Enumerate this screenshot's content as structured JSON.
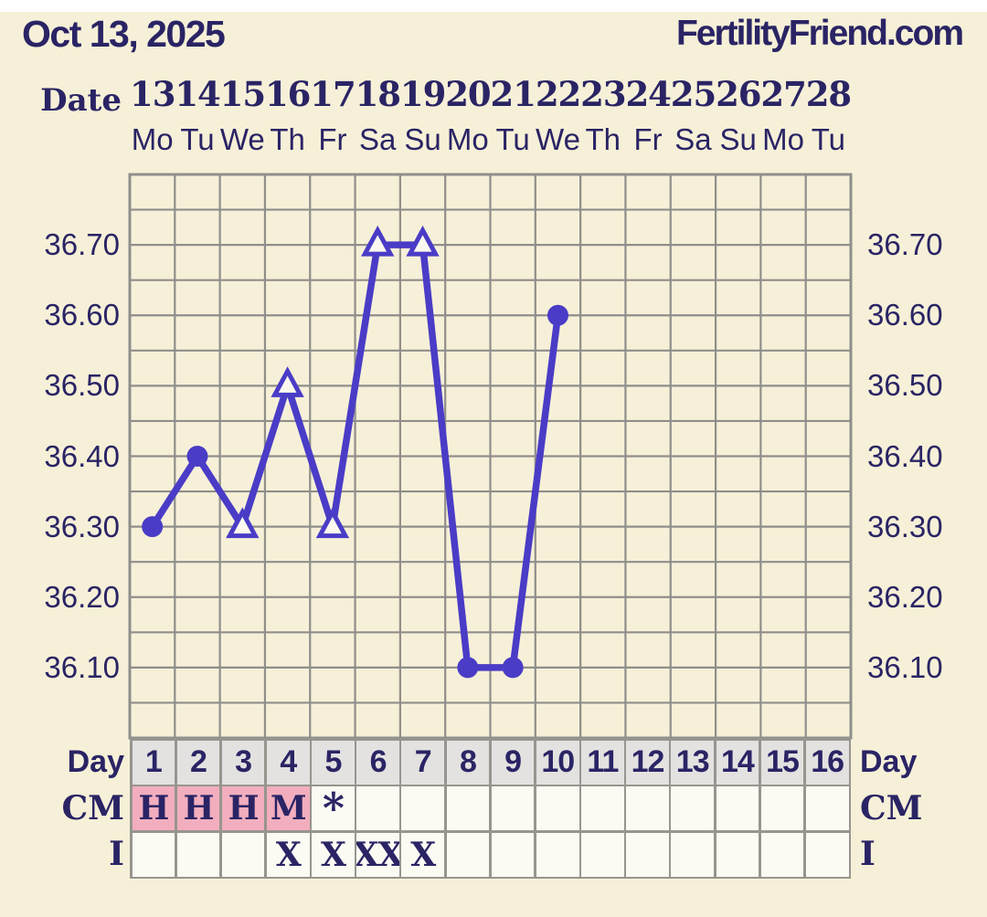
{
  "header": {
    "date_title": "Oct 13, 2025",
    "brand": "FertilityFriend.com"
  },
  "calendar": {
    "axis_label": "Date",
    "dates": [
      "13",
      "14",
      "15",
      "16",
      "17",
      "18",
      "19",
      "20",
      "21",
      "22",
      "23",
      "24",
      "25",
      "26",
      "27",
      "28"
    ],
    "weekdays": [
      "Mo",
      "Tu",
      "We",
      "Th",
      "Fr",
      "Sa",
      "Su",
      "Mo",
      "Tu",
      "We",
      "Th",
      "Fr",
      "Sa",
      "Su",
      "Mo",
      "Tu"
    ]
  },
  "chart_data": {
    "type": "line",
    "x_days": [
      1,
      2,
      3,
      4,
      5,
      6,
      7,
      8,
      9,
      10,
      11,
      12,
      13,
      14,
      15,
      16
    ],
    "points": [
      {
        "day": 1,
        "temp": 36.3,
        "marker": "circle"
      },
      {
        "day": 2,
        "temp": 36.4,
        "marker": "circle"
      },
      {
        "day": 3,
        "temp": 36.3,
        "marker": "triangle"
      },
      {
        "day": 4,
        "temp": 36.5,
        "marker": "triangle"
      },
      {
        "day": 5,
        "temp": 36.3,
        "marker": "triangle"
      },
      {
        "day": 6,
        "temp": 36.7,
        "marker": "triangle"
      },
      {
        "day": 7,
        "temp": 36.7,
        "marker": "triangle"
      },
      {
        "day": 8,
        "temp": 36.1,
        "marker": "circle"
      },
      {
        "day": 9,
        "temp": 36.1,
        "marker": "circle"
      },
      {
        "day": 10,
        "temp": 36.6,
        "marker": "circle"
      }
    ],
    "y_tick_labels": [
      "36.70",
      "36.60",
      "36.50",
      "36.40",
      "36.30",
      "36.20",
      "36.10"
    ],
    "ylim": [
      36.0,
      36.8
    ],
    "grid_step": 0.05,
    "columns": 16,
    "grid_on": true,
    "tick_labels_both_sides": true
  },
  "table": {
    "day_label": "Day",
    "cm_label": "CM",
    "i_label": "I",
    "day_numbers": [
      "1",
      "2",
      "3",
      "4",
      "5",
      "6",
      "7",
      "8",
      "9",
      "10",
      "11",
      "12",
      "13",
      "14",
      "15",
      "16"
    ],
    "cm_values": [
      "H",
      "H",
      "H",
      "M",
      "*",
      "",
      "",
      "",
      "",
      "",
      "",
      "",
      "",
      "",
      "",
      ""
    ],
    "cm_pink": [
      true,
      true,
      true,
      true,
      false,
      false,
      false,
      false,
      false,
      false,
      false,
      false,
      false,
      false,
      false,
      false
    ],
    "i_values": [
      "",
      "",
      "",
      "X",
      "X",
      "XX",
      "X",
      "",
      "",
      "",
      "",
      "",
      "",
      "",
      "",
      ""
    ]
  },
  "colors": {
    "accent": "#4a3cc6",
    "text_navy": "#2a2465",
    "grid_line": "#8f8e8b",
    "table_border": "#97958e",
    "pink": "#f2aebe",
    "cell_bg": "#fbfaf3",
    "day_row_bg": "#e3e2e0",
    "page_bg": "#f6f0d8",
    "top_strip": "#ffffff",
    "triangle_fill": "#fbf9ef"
  }
}
